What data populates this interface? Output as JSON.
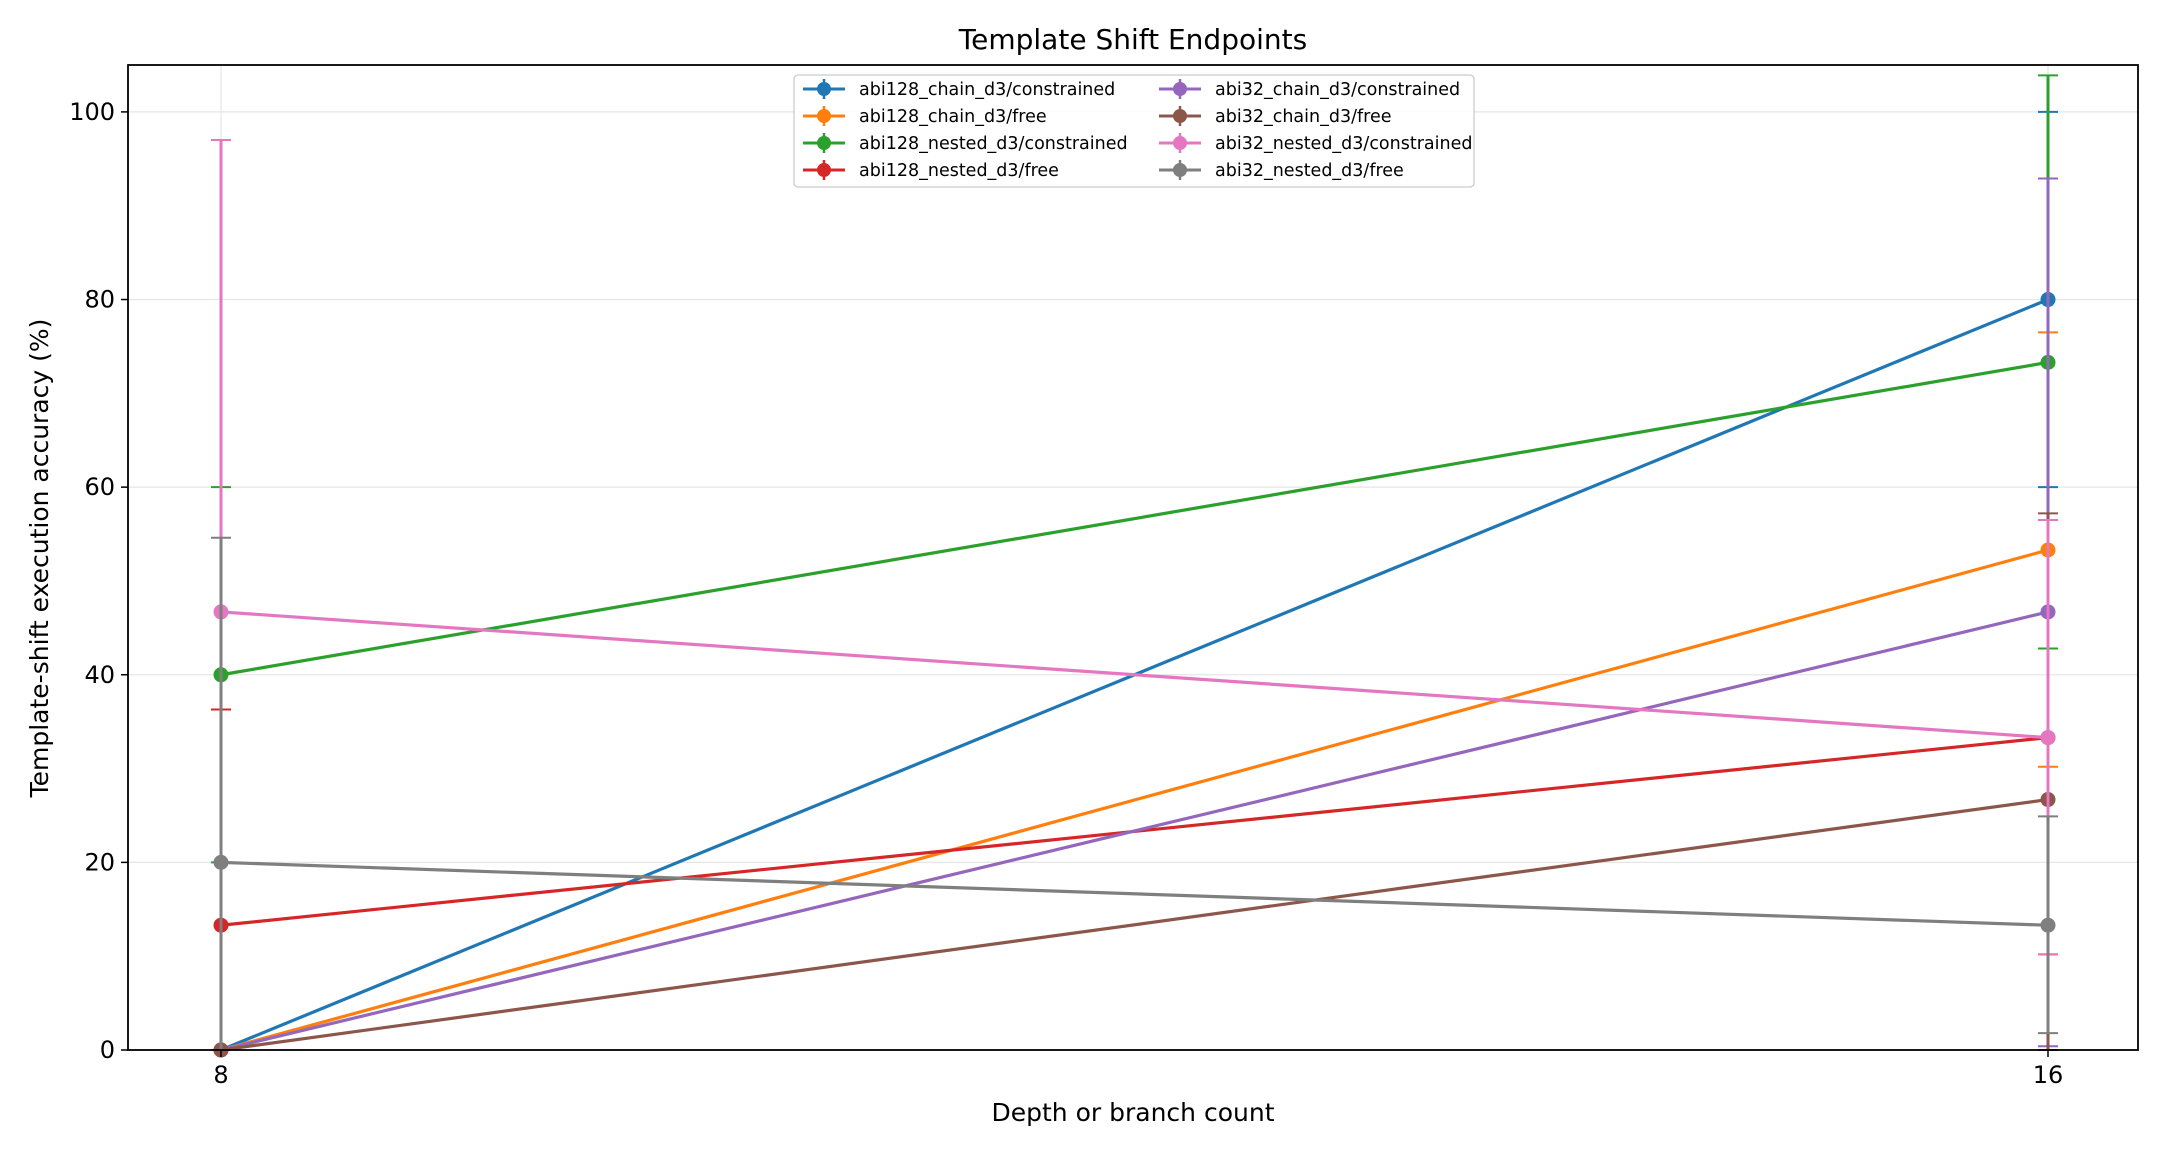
{
  "chart_data": {
    "type": "line",
    "title": "Template Shift Endpoints",
    "xlabel": "Depth or branch count",
    "ylabel": "Template-shift execution accuracy (%)",
    "x": [
      8,
      16
    ],
    "xticks": [
      "8",
      "16"
    ],
    "yticks": [
      "0",
      "20",
      "40",
      "60",
      "80",
      "100"
    ],
    "ylim": [
      0,
      105
    ],
    "grid": true,
    "legend": {
      "placement": "top-center",
      "columns": 2
    },
    "series": [
      {
        "name": "abi128_chain_d3/constrained",
        "color": "#1f77b4",
        "values": [
          0,
          80
        ],
        "err_low": [
          0,
          60
        ],
        "err_high": [
          0,
          100
        ]
      },
      {
        "name": "abi128_chain_d3/free",
        "color": "#ff7f0e",
        "values": [
          0,
          53.3
        ],
        "err_low": [
          0,
          30.2
        ],
        "err_high": [
          0,
          76.5
        ]
      },
      {
        "name": "abi128_nested_d3/constrained",
        "color": "#2ca02c",
        "values": [
          40,
          73.3
        ],
        "err_low": [
          20,
          42.8
        ],
        "err_high": [
          60,
          103.9
        ]
      },
      {
        "name": "abi128_nested_d3/free",
        "color": "#d62728",
        "values": [
          13.3,
          33.3
        ],
        "err_low": [
          0,
          10.2
        ],
        "err_high": [
          36.3,
          56.5
        ]
      },
      {
        "name": "abi32_chain_d3/constrained",
        "color": "#9467bd",
        "values": [
          0,
          46.7
        ],
        "err_low": [
          0,
          0.4
        ],
        "err_high": [
          0,
          92.9
        ]
      },
      {
        "name": "abi32_chain_d3/free",
        "color": "#8c564b",
        "values": [
          0,
          26.7
        ],
        "err_low": [
          0,
          0
        ],
        "err_high": [
          0,
          57.2
        ]
      },
      {
        "name": "abi32_nested_d3/constrained",
        "color": "#e377c2",
        "values": [
          46.7,
          33.3
        ],
        "err_low": [
          0,
          10.2
        ],
        "err_high": [
          97,
          56.5
        ]
      },
      {
        "name": "abi32_nested_d3/free",
        "color": "#7f7f7f",
        "values": [
          20,
          13.3
        ],
        "err_low": [
          0,
          1.8
        ],
        "err_high": [
          54.6,
          24.9
        ]
      }
    ]
  }
}
